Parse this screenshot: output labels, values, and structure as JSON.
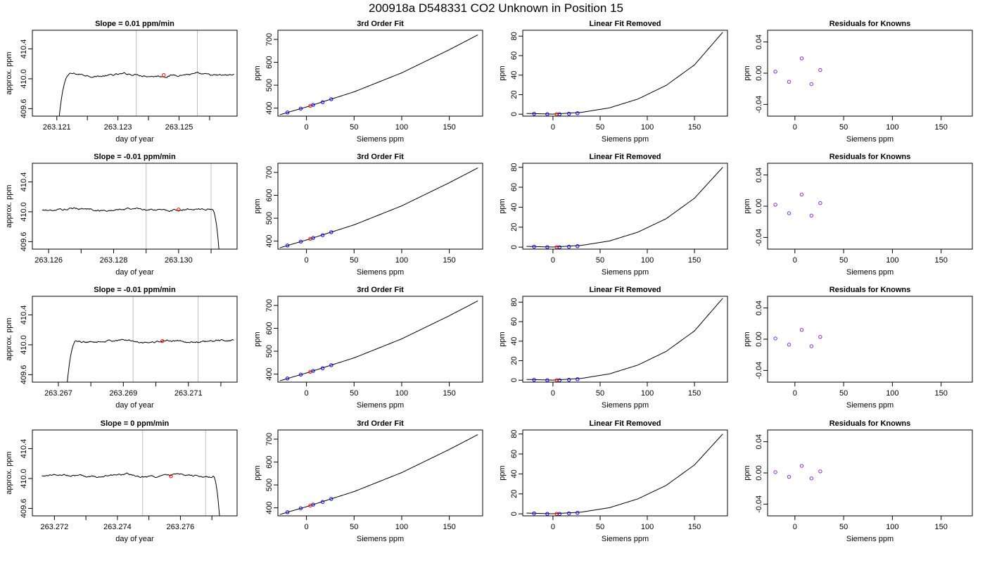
{
  "page_title": "200918a     D548331    CO2 Unknown in Position  15",
  "colors": {
    "line": "#000000",
    "known_point": "#0000ff",
    "unknown_point": "#ff0000",
    "residual_point": "#8a2be2",
    "window_line": "#bebebe"
  },
  "chart_data": [
    {
      "type": "line",
      "row": 0,
      "col": 0,
      "title": "Slope =  0.01  ppm/min",
      "xlabel": "day of year",
      "ylabel": "approx. ppm",
      "xlim": [
        263.1202,
        263.1269
      ],
      "ylim": [
        409.5,
        410.65
      ],
      "xticks": [
        "263.121",
        "263.123",
        "263.125"
      ],
      "xtick_values": [
        263.121,
        263.123,
        263.125
      ],
      "xtick_minor": [
        263.122,
        263.124,
        263.126
      ],
      "yticks": [
        "409.6",
        "410.0",
        "410.4"
      ],
      "ytick_values": [
        409.6,
        410.0,
        410.4
      ],
      "trace": {
        "x_start": 263.121,
        "x_end": 263.1268,
        "shape": "rise",
        "plateau": 410.05
      },
      "window_lines": [
        263.1236,
        263.1256
      ],
      "unknown_point": {
        "x": 263.1245,
        "y": 410.05
      }
    },
    {
      "type": "scatter",
      "row": 0,
      "col": 1,
      "title": "3rd Order Fit",
      "xlabel": "Siemens ppm",
      "ylabel": "ppm",
      "xlim": [
        -30,
        185
      ],
      "ylim": [
        365,
        740
      ],
      "xticks": [
        "0",
        "50",
        "100",
        "150"
      ],
      "xtick_values": [
        0,
        50,
        100,
        150
      ],
      "yticks": [
        "400",
        "500",
        "600",
        "700"
      ],
      "ytick_values": [
        400,
        500,
        600,
        700
      ],
      "curve": {
        "x": [
          -28,
          0,
          50,
          100,
          150,
          180
        ],
        "y": [
          371,
          405,
          471,
          554,
          655,
          720
        ]
      },
      "known_points": [
        {
          "x": -20,
          "y": 381
        },
        {
          "x": -6,
          "y": 398
        },
        {
          "x": 7,
          "y": 414
        },
        {
          "x": 17,
          "y": 426
        },
        {
          "x": 26,
          "y": 439
        }
      ],
      "unknown_point": {
        "x": 4,
        "y": 410
      }
    },
    {
      "type": "scatter",
      "row": 0,
      "col": 2,
      "title": "Linear Fit Removed",
      "xlabel": "Siemens ppm",
      "ylabel": "ppm",
      "xlim": [
        -32,
        185
      ],
      "ylim": [
        -2,
        86
      ],
      "xticks": [
        "0",
        "50",
        "100",
        "150"
      ],
      "xtick_values": [
        0,
        50,
        100,
        150
      ],
      "yticks": [
        "0",
        "20",
        "40",
        "60",
        "80"
      ],
      "ytick_values": [
        0,
        20,
        40,
        60,
        80
      ],
      "curve": {
        "x": [
          -28,
          0,
          30,
          60,
          90,
          120,
          150,
          180
        ],
        "y": [
          0.8,
          0.1,
          1.8,
          6.5,
          15.5,
          29.5,
          50.5,
          84
        ]
      },
      "known_points": [
        {
          "x": -20,
          "y": 0.4
        },
        {
          "x": -6,
          "y": 0
        },
        {
          "x": 7,
          "y": 0
        },
        {
          "x": 17,
          "y": 0.4
        },
        {
          "x": 26,
          "y": 1
        }
      ],
      "unknown_point": {
        "x": 4,
        "y": 0
      }
    },
    {
      "type": "scatter",
      "row": 0,
      "col": 3,
      "title": "Residuals for Knowns",
      "xlabel": "Siemens ppm",
      "ylabel": "ppm",
      "xlim": [
        -28,
        182
      ],
      "ylim": [
        -0.055,
        0.055
      ],
      "xticks": [
        "0",
        "50",
        "100",
        "150"
      ],
      "xtick_values": [
        0,
        50,
        100,
        150
      ],
      "yticks": [
        "-0.04",
        "0.00",
        "0.04"
      ],
      "ytick_values": [
        -0.04,
        0.0,
        0.04
      ],
      "known_points": [
        {
          "x": -20,
          "y": 0.002
        },
        {
          "x": -6,
          "y": -0.011
        },
        {
          "x": 7,
          "y": 0.019
        },
        {
          "x": 17,
          "y": -0.014
        },
        {
          "x": 26,
          "y": 0.004
        }
      ]
    },
    {
      "type": "line",
      "row": 1,
      "col": 0,
      "title": "Slope =  -0.01  ppm/min",
      "xlabel": "day of year",
      "ylabel": "approx. ppm",
      "xlim": [
        263.1255,
        263.1318
      ],
      "ylim": [
        409.5,
        410.65
      ],
      "xticks": [
        "263.126",
        "263.128",
        "263.130"
      ],
      "xtick_values": [
        263.126,
        263.128,
        263.13
      ],
      "xtick_minor": [
        263.127,
        263.129,
        263.131
      ],
      "yticks": [
        "409.6",
        "410.0",
        "410.4"
      ],
      "ytick_values": [
        409.6,
        410.0,
        410.4
      ],
      "trace": {
        "x_start": 263.1258,
        "x_end": 263.1313,
        "shape": "fall",
        "plateau": 410.03
      },
      "window_lines": [
        263.129,
        263.131
      ],
      "unknown_point": {
        "x": 263.13,
        "y": 410.03
      }
    },
    {
      "type": "scatter",
      "row": 1,
      "col": 1,
      "title": "3rd Order Fit",
      "xlabel": "Siemens ppm",
      "ylabel": "ppm",
      "xlim": [
        -30,
        185
      ],
      "ylim": [
        365,
        740
      ],
      "xticks": [
        "0",
        "50",
        "100",
        "150"
      ],
      "xtick_values": [
        0,
        50,
        100,
        150
      ],
      "yticks": [
        "400",
        "500",
        "600",
        "700"
      ],
      "ytick_values": [
        400,
        500,
        600,
        700
      ],
      "curve": {
        "x": [
          -28,
          0,
          50,
          100,
          150,
          180
        ],
        "y": [
          371,
          405,
          471,
          554,
          655,
          720
        ]
      },
      "known_points": [
        {
          "x": -20,
          "y": 381
        },
        {
          "x": -6,
          "y": 398
        },
        {
          "x": 7,
          "y": 414
        },
        {
          "x": 17,
          "y": 426
        },
        {
          "x": 26,
          "y": 439
        }
      ],
      "unknown_point": {
        "x": 4,
        "y": 410
      }
    },
    {
      "type": "scatter",
      "row": 1,
      "col": 2,
      "title": "Linear Fit Removed",
      "xlabel": "Siemens ppm",
      "ylabel": "ppm",
      "xlim": [
        -32,
        185
      ],
      "ylim": [
        -2,
        84
      ],
      "xticks": [
        "0",
        "50",
        "100",
        "150"
      ],
      "xtick_values": [
        0,
        50,
        100,
        150
      ],
      "yticks": [
        "0",
        "20",
        "40",
        "60",
        "80"
      ],
      "ytick_values": [
        0,
        20,
        40,
        60,
        80
      ],
      "curve": {
        "x": [
          -28,
          0,
          30,
          60,
          90,
          120,
          150,
          180
        ],
        "y": [
          0.8,
          0.1,
          1.7,
          6.2,
          15,
          28.5,
          49,
          80
        ]
      },
      "known_points": [
        {
          "x": -20,
          "y": 0.4
        },
        {
          "x": -6,
          "y": 0
        },
        {
          "x": 7,
          "y": 0
        },
        {
          "x": 17,
          "y": 0.4
        },
        {
          "x": 26,
          "y": 1
        }
      ],
      "unknown_point": {
        "x": 4,
        "y": 0
      }
    },
    {
      "type": "scatter",
      "row": 1,
      "col": 3,
      "title": "Residuals for Knowns",
      "xlabel": "Siemens ppm",
      "ylabel": "ppm",
      "xlim": [
        -28,
        182
      ],
      "ylim": [
        -0.055,
        0.055
      ],
      "xticks": [
        "0",
        "50",
        "100",
        "150"
      ],
      "xtick_values": [
        0,
        50,
        100,
        150
      ],
      "yticks": [
        "-0.04",
        "0.00",
        "0.04"
      ],
      "ytick_values": [
        -0.04,
        0.0,
        0.04
      ],
      "known_points": [
        {
          "x": -20,
          "y": 0.002
        },
        {
          "x": -6,
          "y": -0.009
        },
        {
          "x": 7,
          "y": 0.015
        },
        {
          "x": 17,
          "y": -0.012
        },
        {
          "x": 26,
          "y": 0.004
        }
      ]
    },
    {
      "type": "line",
      "row": 2,
      "col": 0,
      "title": "Slope =  -0.01  ppm/min",
      "xlabel": "day of year",
      "ylabel": "approx. ppm",
      "xlim": [
        263.2662,
        263.2725
      ],
      "ylim": [
        409.5,
        410.65
      ],
      "xticks": [
        "263.267",
        "263.269",
        "263.271"
      ],
      "xtick_values": [
        263.267,
        263.269,
        263.271
      ],
      "xtick_minor": [
        263.268,
        263.27,
        263.272
      ],
      "yticks": [
        "409.6",
        "410.0",
        "410.4"
      ],
      "ytick_values": [
        409.6,
        410.0,
        410.4
      ],
      "trace": {
        "x_start": 263.2672,
        "x_end": 263.2724,
        "shape": "rise",
        "plateau": 410.05
      },
      "window_lines": [
        263.2693,
        263.2713
      ],
      "unknown_point": {
        "x": 263.2702,
        "y": 410.05
      }
    },
    {
      "type": "scatter",
      "row": 2,
      "col": 1,
      "title": "3rd Order Fit",
      "xlabel": "Siemens ppm",
      "ylabel": "ppm",
      "xlim": [
        -30,
        185
      ],
      "ylim": [
        365,
        740
      ],
      "xticks": [
        "0",
        "50",
        "100",
        "150"
      ],
      "xtick_values": [
        0,
        50,
        100,
        150
      ],
      "yticks": [
        "400",
        "500",
        "600",
        "700"
      ],
      "ytick_values": [
        400,
        500,
        600,
        700
      ],
      "curve": {
        "x": [
          -28,
          0,
          50,
          100,
          150,
          180
        ],
        "y": [
          371,
          405,
          471,
          554,
          655,
          720
        ]
      },
      "known_points": [
        {
          "x": -20,
          "y": 381
        },
        {
          "x": -6,
          "y": 398
        },
        {
          "x": 7,
          "y": 414
        },
        {
          "x": 17,
          "y": 426
        },
        {
          "x": 26,
          "y": 439
        }
      ],
      "unknown_point": {
        "x": 4,
        "y": 410
      }
    },
    {
      "type": "scatter",
      "row": 2,
      "col": 2,
      "title": "Linear Fit Removed",
      "xlabel": "Siemens ppm",
      "ylabel": "ppm",
      "xlim": [
        -32,
        185
      ],
      "ylim": [
        -2,
        86
      ],
      "xticks": [
        "0",
        "50",
        "100",
        "150"
      ],
      "xtick_values": [
        0,
        50,
        100,
        150
      ],
      "yticks": [
        "0",
        "20",
        "40",
        "60",
        "80"
      ],
      "ytick_values": [
        0,
        20,
        40,
        60,
        80
      ],
      "curve": {
        "x": [
          -28,
          0,
          30,
          60,
          90,
          120,
          150,
          180
        ],
        "y": [
          0.8,
          0.1,
          1.8,
          6.5,
          15.5,
          29.5,
          50.5,
          84
        ]
      },
      "known_points": [
        {
          "x": -20,
          "y": 0.4
        },
        {
          "x": -6,
          "y": 0
        },
        {
          "x": 7,
          "y": 0
        },
        {
          "x": 17,
          "y": 0.4
        },
        {
          "x": 26,
          "y": 1
        }
      ],
      "unknown_point": {
        "x": 4,
        "y": 0
      }
    },
    {
      "type": "scatter",
      "row": 2,
      "col": 3,
      "title": "Residuals for Knowns",
      "xlabel": "Siemens ppm",
      "ylabel": "ppm",
      "xlim": [
        -28,
        182
      ],
      "ylim": [
        -0.055,
        0.055
      ],
      "xticks": [
        "0",
        "50",
        "100",
        "150"
      ],
      "xtick_values": [
        0,
        50,
        100,
        150
      ],
      "yticks": [
        "-0.04",
        "0.00",
        "0.04"
      ],
      "ytick_values": [
        -0.04,
        0.0,
        0.04
      ],
      "known_points": [
        {
          "x": -20,
          "y": 0.001
        },
        {
          "x": -6,
          "y": -0.007
        },
        {
          "x": 7,
          "y": 0.012
        },
        {
          "x": 17,
          "y": -0.009
        },
        {
          "x": 26,
          "y": 0.003
        }
      ]
    },
    {
      "type": "line",
      "row": 3,
      "col": 0,
      "title": "Slope =  0  ppm/min",
      "xlabel": "day of year",
      "ylabel": "approx. ppm",
      "xlim": [
        263.2713,
        263.2778
      ],
      "ylim": [
        409.5,
        410.65
      ],
      "xticks": [
        "263.272",
        "263.274",
        "263.276"
      ],
      "xtick_values": [
        263.272,
        263.274,
        263.276
      ],
      "xtick_minor": [
        263.273,
        263.275,
        263.277
      ],
      "yticks": [
        "409.6",
        "410.0",
        "410.4"
      ],
      "ytick_values": [
        409.6,
        410.0,
        410.4
      ],
      "trace": {
        "x_start": 263.2716,
        "x_end": 263.2773,
        "shape": "fall",
        "plateau": 410.04
      },
      "window_lines": [
        263.2748,
        263.2768
      ],
      "unknown_point": {
        "x": 263.2757,
        "y": 410.03
      }
    },
    {
      "type": "scatter",
      "row": 3,
      "col": 1,
      "title": "3rd Order Fit",
      "xlabel": "Siemens ppm",
      "ylabel": "ppm",
      "xlim": [
        -30,
        185
      ],
      "ylim": [
        365,
        740
      ],
      "xticks": [
        "0",
        "50",
        "100",
        "150"
      ],
      "xtick_values": [
        0,
        50,
        100,
        150
      ],
      "yticks": [
        "400",
        "500",
        "600",
        "700"
      ],
      "ytick_values": [
        400,
        500,
        600,
        700
      ],
      "curve": {
        "x": [
          -28,
          0,
          50,
          100,
          150,
          180
        ],
        "y": [
          371,
          405,
          471,
          554,
          655,
          720
        ]
      },
      "known_points": [
        {
          "x": -20,
          "y": 381
        },
        {
          "x": -6,
          "y": 398
        },
        {
          "x": 7,
          "y": 414
        },
        {
          "x": 17,
          "y": 426
        },
        {
          "x": 26,
          "y": 439
        }
      ],
      "unknown_point": {
        "x": 4,
        "y": 410
      }
    },
    {
      "type": "scatter",
      "row": 3,
      "col": 2,
      "title": "Linear Fit Removed",
      "xlabel": "Siemens ppm",
      "ylabel": "ppm",
      "xlim": [
        -32,
        185
      ],
      "ylim": [
        -2,
        84
      ],
      "xticks": [
        "0",
        "50",
        "100",
        "150"
      ],
      "xtick_values": [
        0,
        50,
        100,
        150
      ],
      "yticks": [
        "0",
        "20",
        "40",
        "60",
        "80"
      ],
      "ytick_values": [
        0,
        20,
        40,
        60,
        80
      ],
      "curve": {
        "x": [
          -28,
          0,
          30,
          60,
          90,
          120,
          150,
          180
        ],
        "y": [
          0.8,
          0.1,
          1.7,
          6.2,
          15,
          28.5,
          49,
          80
        ]
      },
      "known_points": [
        {
          "x": -20,
          "y": 0.4
        },
        {
          "x": -6,
          "y": 0
        },
        {
          "x": 7,
          "y": 0
        },
        {
          "x": 17,
          "y": 0.4
        },
        {
          "x": 26,
          "y": 1
        }
      ],
      "unknown_point": {
        "x": 4,
        "y": 0
      }
    },
    {
      "type": "scatter",
      "row": 3,
      "col": 3,
      "title": "Residuals for Knowns",
      "xlabel": "Siemens ppm",
      "ylabel": "ppm",
      "xlim": [
        -28,
        182
      ],
      "ylim": [
        -0.055,
        0.055
      ],
      "xticks": [
        "0",
        "50",
        "100",
        "150"
      ],
      "xtick_values": [
        0,
        50,
        100,
        150
      ],
      "yticks": [
        "-0.04",
        "0.00",
        "0.04"
      ],
      "ytick_values": [
        -0.04,
        0.0,
        0.04
      ],
      "known_points": [
        {
          "x": -20,
          "y": 0.001
        },
        {
          "x": -6,
          "y": -0.005
        },
        {
          "x": 7,
          "y": 0.009
        },
        {
          "x": 17,
          "y": -0.007
        },
        {
          "x": 26,
          "y": 0.002
        }
      ]
    }
  ]
}
